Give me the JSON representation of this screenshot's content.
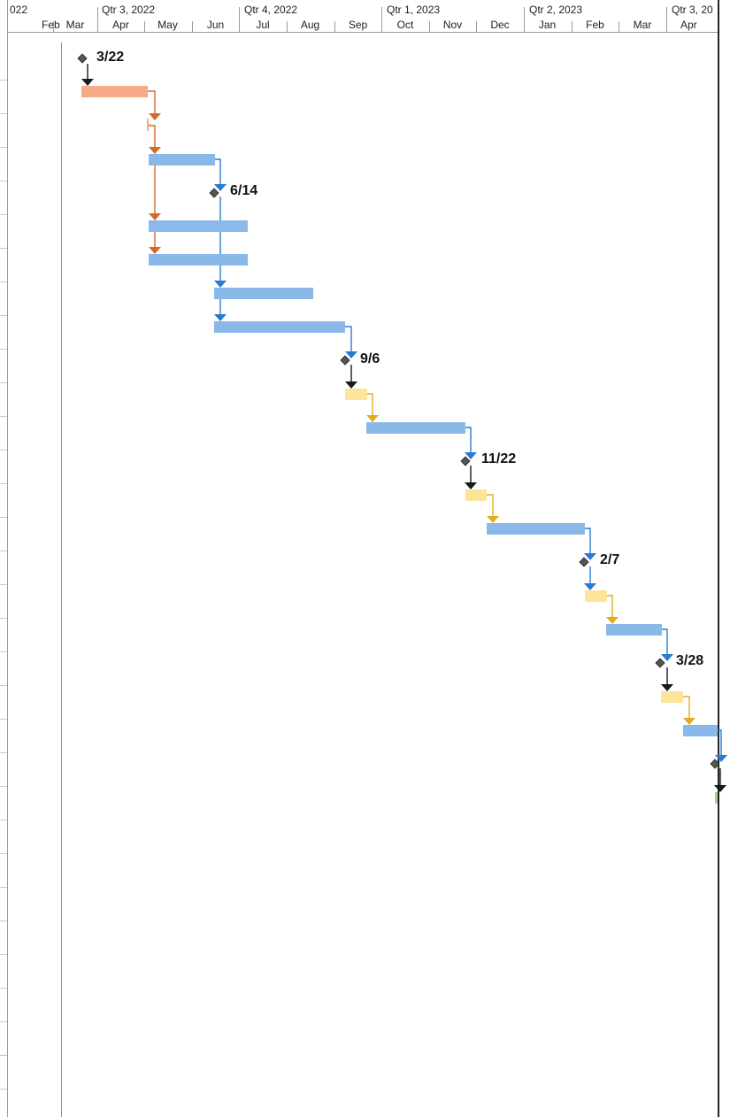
{
  "timescale": {
    "quarters": [
      "022",
      "Qtr 3, 2022",
      "Qtr 4, 2022",
      "Qtr 1, 2023",
      "Qtr 2, 2023",
      "Qtr 3, 20"
    ],
    "months": [
      "Feb",
      "Mar",
      "Apr",
      "May",
      "Jun",
      "Jul",
      "Aug",
      "Sep",
      "Oct",
      "Nov",
      "Dec",
      "Jan",
      "Feb",
      "Mar",
      "Apr"
    ]
  },
  "colors": {
    "summary_bar": "#f4ab86",
    "summary_link": "#d46a27",
    "task_bar": "#8ab9e9",
    "task_link": "#2a7ad2",
    "review_bar": "#fde49b",
    "review_link": "#e0ad1d",
    "milestone": "#555555",
    "milestone_link": "#1a1a1a",
    "today_line": "#5cb85c",
    "green_bar": "#9fd68f"
  },
  "tasks": [
    {
      "type": "milestone",
      "label": "3/22"
    },
    {
      "type": "summary_task"
    },
    {
      "type": "summary_marker"
    },
    {
      "type": "task"
    },
    {
      "type": "milestone",
      "label": "6/14"
    },
    {
      "type": "task"
    },
    {
      "type": "task"
    },
    {
      "type": "task"
    },
    {
      "type": "task"
    },
    {
      "type": "milestone",
      "label": "9/6"
    },
    {
      "type": "review_task"
    },
    {
      "type": "task"
    },
    {
      "type": "milestone",
      "label": "11/22"
    },
    {
      "type": "review_task"
    },
    {
      "type": "task"
    },
    {
      "type": "milestone",
      "label": "2/7"
    },
    {
      "type": "review_task"
    },
    {
      "type": "task"
    },
    {
      "type": "milestone",
      "label": "3/28"
    },
    {
      "type": "review_task"
    },
    {
      "type": "task"
    },
    {
      "type": "milestone"
    },
    {
      "type": "green_task"
    }
  ]
}
